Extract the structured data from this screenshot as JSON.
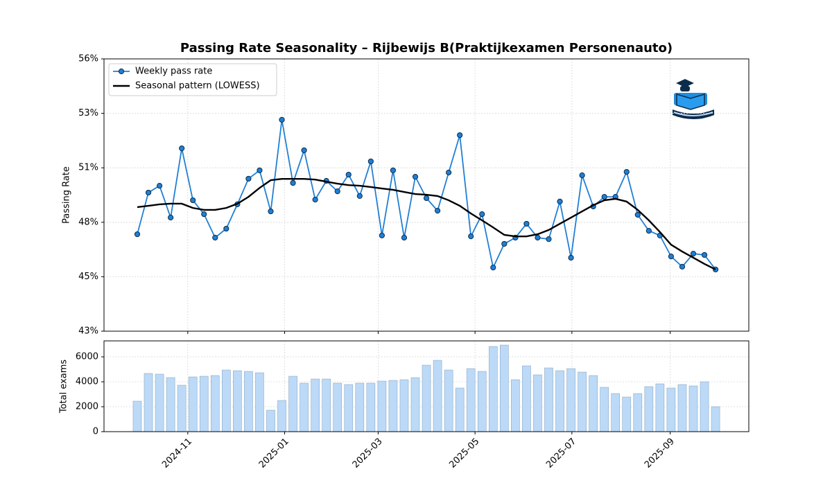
{
  "chart_data": [
    {
      "type": "line",
      "title": "Passing Rate Seasonality – Rijbewijs B(Praktijkexamen Personenauto)",
      "ylabel": "Passing Rate",
      "categories": [
        null,
        null,
        null,
        null,
        null,
        null,
        null,
        null,
        null,
        null,
        null,
        null,
        null,
        null,
        null,
        null,
        null,
        null,
        null,
        null,
        null,
        null,
        null,
        null,
        null,
        null,
        null,
        null,
        null,
        null,
        null,
        null,
        null,
        null,
        null,
        null,
        null,
        null,
        null,
        null,
        null,
        null,
        null,
        null,
        null,
        null,
        null,
        null,
        null,
        null,
        null,
        null,
        null
      ],
      "series": [
        {
          "name": "Weekly pass rate",
          "color": "#1f7fd4",
          "marker": true,
          "values": [
            47.44,
            49.39,
            49.71,
            48.22,
            51.46,
            49.03,
            48.38,
            47.28,
            47.7,
            48.84,
            50.04,
            50.43,
            48.51,
            52.8,
            49.84,
            51.37,
            49.06,
            49.94,
            49.45,
            50.23,
            49.23,
            50.85,
            47.38,
            50.43,
            47.28,
            50.13,
            49.13,
            48.54,
            50.33,
            52.08,
            47.34,
            48.38,
            45.88,
            46.99,
            47.28,
            47.93,
            47.28,
            47.21,
            48.97,
            46.34,
            50.2,
            48.74,
            49.19,
            49.19,
            50.36,
            48.35,
            47.6,
            47.38,
            46.4,
            45.92,
            46.53,
            46.47,
            45.79
          ]
        },
        {
          "name": "Seasonal pattern (LOWESS)",
          "color": "#000000",
          "marker": false,
          "values": [
            48.71,
            48.77,
            48.84,
            48.87,
            48.87,
            48.67,
            48.58,
            48.58,
            48.67,
            48.87,
            49.19,
            49.61,
            49.97,
            50.03,
            50.03,
            50.03,
            50.0,
            49.9,
            49.81,
            49.74,
            49.71,
            49.65,
            49.58,
            49.52,
            49.42,
            49.32,
            49.29,
            49.23,
            49.03,
            48.77,
            48.41,
            48.09,
            47.76,
            47.41,
            47.34,
            47.34,
            47.44,
            47.64,
            47.93,
            48.22,
            48.51,
            48.8,
            49.03,
            49.1,
            48.97,
            48.58,
            48.09,
            47.54,
            46.95,
            46.63,
            46.34,
            46.05,
            45.79
          ]
        }
      ],
      "ylim": [
        42.9,
        55.65
      ],
      "yticks": [
        {
          "value": 42.9,
          "label": "43%"
        },
        {
          "value": 45.45,
          "label": "45%"
        },
        {
          "value": 48.0,
          "label": "48%"
        },
        {
          "value": 50.55,
          "label": "51%"
        },
        {
          "value": 53.1,
          "label": "53%"
        },
        {
          "value": 55.65,
          "label": "56%"
        }
      ],
      "grid": true,
      "legend": "upper-left"
    },
    {
      "type": "bar",
      "ylabel": "Total exams",
      "categories": [
        null,
        null,
        null,
        null,
        null,
        null,
        null,
        null,
        null,
        null,
        null,
        null,
        null,
        null,
        null,
        null,
        null,
        null,
        null,
        null,
        null,
        null,
        null,
        null,
        null,
        null,
        null,
        null,
        null,
        null,
        null,
        null,
        null,
        null,
        null,
        null,
        null,
        null,
        null,
        null,
        null,
        null,
        null,
        null,
        null,
        null,
        null,
        null,
        null,
        null,
        null,
        null,
        null
      ],
      "values": [
        2444,
        4667,
        4611,
        4333,
        3722,
        4389,
        4444,
        4500,
        4944,
        4889,
        4833,
        4722,
        1722,
        2500,
        4444,
        3889,
        4222,
        4222,
        3889,
        3778,
        3889,
        3889,
        4056,
        4111,
        4167,
        4333,
        5333,
        5722,
        4944,
        3500,
        5056,
        4833,
        6833,
        6944,
        4167,
        5278,
        4556,
        5111,
        4889,
        5056,
        4778,
        4500,
        3556,
        3056,
        2778,
        3056,
        3611,
        3833,
        3500,
        3778,
        3667,
        4000,
        2000
      ],
      "color": "#bcdaf7",
      "ylim": [
        0,
        7280
      ],
      "yticks": [
        0,
        2000,
        4000,
        6000
      ],
      "xticks": [
        {
          "value": 4.54,
          "label": "2024-11"
        },
        {
          "value": 13.25,
          "label": "2025-01"
        },
        {
          "value": 21.66,
          "label": "2025-03"
        },
        {
          "value": 30.37,
          "label": "2025-05"
        },
        {
          "value": 39.08,
          "label": "2025-07"
        },
        {
          "value": 47.92,
          "label": "2025-09"
        }
      ],
      "grid": true
    }
  ]
}
